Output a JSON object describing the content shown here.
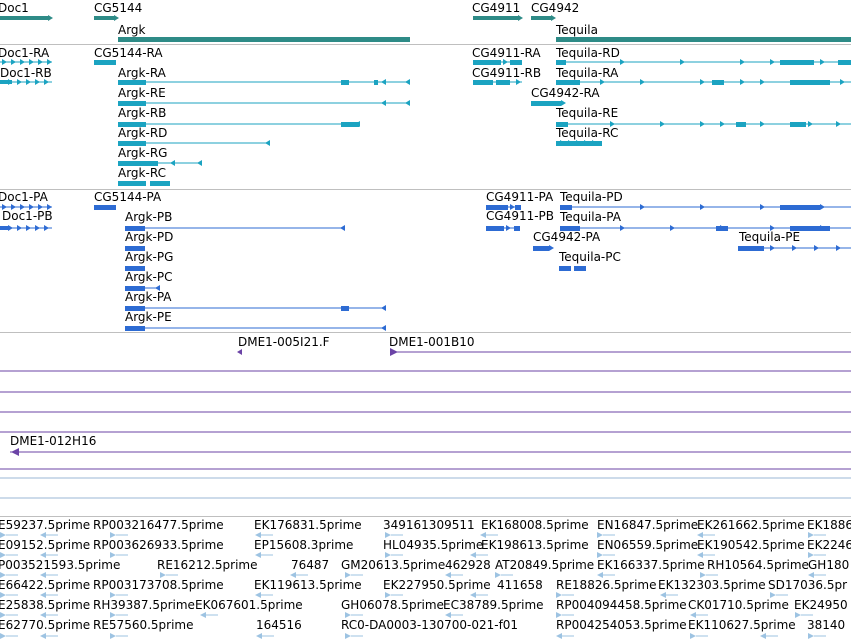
{
  "colors": {
    "gene": "#2e8b87",
    "transcript": "#1ba3c1",
    "protein": "#2d6bd3",
    "clone": "#6b43a6",
    "est": "#9dc3e2",
    "separator": "#bfbfbf"
  },
  "genes": {
    "labels": [
      "Doc1",
      "CG5144",
      "Argk",
      "CG4911",
      "CG4942",
      "Tequila"
    ]
  },
  "transcripts": {
    "labels": [
      "Doc1-RA",
      "Doc1-RB",
      "CG5144-RA",
      "Argk-RA",
      "Argk-RE",
      "Argk-RB",
      "Argk-RD",
      "Argk-RG",
      "Argk-RC",
      "CG4911-RA",
      "CG4911-RB",
      "CG4942-RA",
      "Tequila-RD",
      "Tequila-RA",
      "Tequila-RE",
      "Tequila-RC"
    ]
  },
  "proteins": {
    "labels": [
      "Doc1-PA",
      "Doc1-PB",
      "CG5144-PA",
      "Argk-PB",
      "Argk-PD",
      "Argk-PG",
      "Argk-PC",
      "Argk-PA",
      "Argk-PE",
      "CG4911-PA",
      "CG4911-PB",
      "CG4942-PA",
      "Tequila-PD",
      "Tequila-PA",
      "Tequila-PE",
      "Tequila-PC"
    ]
  },
  "clones": {
    "labels": [
      "DME1-005I21.F",
      "DME1-001B10",
      "DME1-012H16"
    ]
  },
  "ests": {
    "rows": [
      [
        "E59237.5prime",
        "RP003216477.5prime",
        "EK176831.5prime",
        "349161309511",
        "EK168008.5prime",
        "EN16847.5prime",
        "EK261662.5prime",
        "EK1886"
      ],
      [
        "E09152.5prime",
        "RP003626933.5prime",
        "EP15608.3prime",
        "HL04935.5prime",
        "EK198613.5prime",
        "EN06559.5prime",
        "EK190542.5prime",
        "EK2246"
      ],
      [
        "P003521593.5prime",
        "RE16212.5prime",
        "76487",
        "GM20613.5prime",
        "462928",
        "AT20849.5prime",
        "EK166337.5prime",
        "RH10564.5prime",
        "GH180"
      ],
      [
        "E66422.5prime",
        "RP003173708.5prime",
        "EK119613.5prime",
        "EK227950.5prime",
        "411658",
        "RE18826.5prime",
        "EK132303.5prime",
        "SD17036.5pr"
      ],
      [
        "E25838.5prime",
        "RH39387.5prime",
        "EK067601.5prime",
        "GH06078.5prime",
        "EC38789.5prime",
        "RP004094458.5prime",
        "CK01710.5prime",
        "EK24950"
      ],
      [
        "E62770.5prime",
        "RE57560.5prime",
        "164516",
        "RC0-DA0003-130700-021-f01",
        "RP004254053.5prime",
        "EK110627.5prime",
        "38140"
      ]
    ]
  }
}
